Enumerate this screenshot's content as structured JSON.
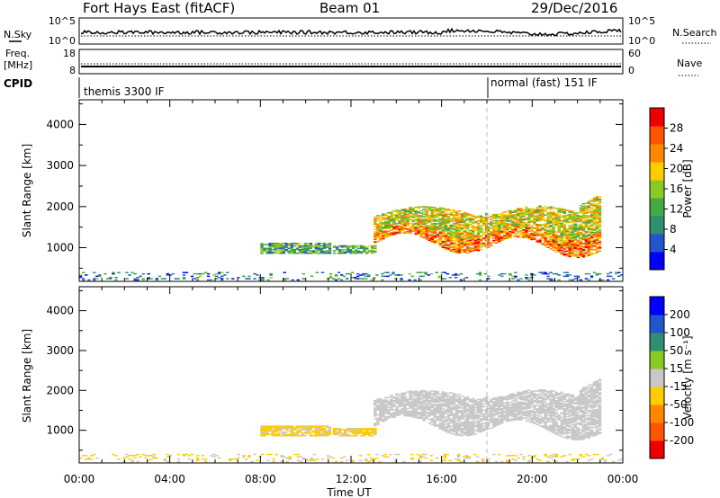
{
  "header": {
    "station": "Fort Hays East (fitACF)",
    "beam": "Beam 01",
    "date": "29/Dec/2016"
  },
  "status_panels": {
    "nsky_label": "N.Sky",
    "nsky_ticks": [
      "10^5",
      "10^0"
    ],
    "nsearch_label": "N.Search",
    "nsearch_ticks": [
      "10^5",
      "10^0"
    ],
    "freq_label": "Freq.",
    "freq_unit": "[MHz]",
    "freq_ticks": [
      "18",
      "8"
    ],
    "nave_label": "Nave",
    "nave_ticks": [
      "60",
      "0"
    ],
    "cpid_label": "CPID",
    "cpid_segments": [
      {
        "label": "themis 3300 IF",
        "start_hour": 0
      },
      {
        "label": "normal (fast) 151 IF",
        "start_hour": 18
      }
    ]
  },
  "chart_data": [
    {
      "type": "heatmap",
      "panel": "power",
      "ylabel": "Slant Range [km]",
      "xlabel": "",
      "xlim_hours": [
        0,
        24
      ],
      "ylim": [
        180,
        4600
      ],
      "yticks": [
        1000,
        2000,
        3000,
        4000
      ],
      "colorbar": {
        "label": "Power [dB]",
        "ticks": [
          "4",
          "8",
          "12",
          "16",
          "20",
          "24",
          "28"
        ],
        "tick_values": [
          4,
          8,
          12,
          16,
          20,
          24,
          28
        ],
        "range": [
          0,
          32
        ],
        "colors": [
          "#0000ff",
          "#2255cc",
          "#2f8f6e",
          "#44aa44",
          "#88cc22",
          "#ffcc00",
          "#ff8800",
          "#ff5500",
          "#ee0000"
        ]
      },
      "echo_regions": [
        {
          "t_start": 8.0,
          "t_end": 11.0,
          "r_min": 850,
          "r_max": 1100,
          "value": 12
        },
        {
          "t_start": 11.2,
          "t_end": 13.0,
          "r_min": 850,
          "r_max": 1050,
          "value": 12
        },
        {
          "t_start": 13.0,
          "t_end": 18.0,
          "r_min": 1100,
          "r_max": 2000,
          "value": 18
        },
        {
          "t_start": 18.0,
          "t_end": 23.0,
          "r_min": 1000,
          "r_max": 2000,
          "value": 18
        },
        {
          "t_start": 0.0,
          "t_end": 24.0,
          "r_min": 200,
          "r_max": 400,
          "value": 8
        }
      ]
    },
    {
      "type": "heatmap",
      "panel": "velocity",
      "ylabel": "Slant Range [km]",
      "xlabel": "Time UT",
      "xlim_hours": [
        0,
        24
      ],
      "xticks": [
        "00:00",
        "04:00",
        "08:00",
        "12:00",
        "16:00",
        "20:00",
        "00:00"
      ],
      "ylim": [
        180,
        4600
      ],
      "yticks": [
        1000,
        2000,
        3000,
        4000
      ],
      "colorbar": {
        "label": "Velocity [m s⁻¹]",
        "ticks": [
          "-200",
          "-100",
          "-50",
          "-15",
          "15",
          "50",
          "100",
          "200"
        ],
        "colors": [
          "#ee0000",
          "#ff5500",
          "#ff8800",
          "#ffcc00",
          "#c8c8c8",
          "#88cc22",
          "#2f8f6e",
          "#2255cc",
          "#0000ff"
        ]
      },
      "echo_regions": [
        {
          "t_start": 8.0,
          "t_end": 11.0,
          "r_min": 850,
          "r_max": 1100,
          "value": -20
        },
        {
          "t_start": 11.2,
          "t_end": 13.0,
          "r_min": 850,
          "r_max": 1050,
          "value": -20
        },
        {
          "t_start": 13.0,
          "t_end": 18.0,
          "r_min": 1100,
          "r_max": 2000,
          "value": 0
        },
        {
          "t_start": 18.0,
          "t_end": 23.0,
          "r_min": 1000,
          "r_max": 2000,
          "value": 0
        },
        {
          "t_start": 0.0,
          "t_end": 24.0,
          "r_min": 200,
          "r_max": 400,
          "value": -20
        }
      ]
    }
  ],
  "colors": {
    "dashed_marker": "#bbbbbb",
    "ground_scatter": "#c8c8c8"
  }
}
